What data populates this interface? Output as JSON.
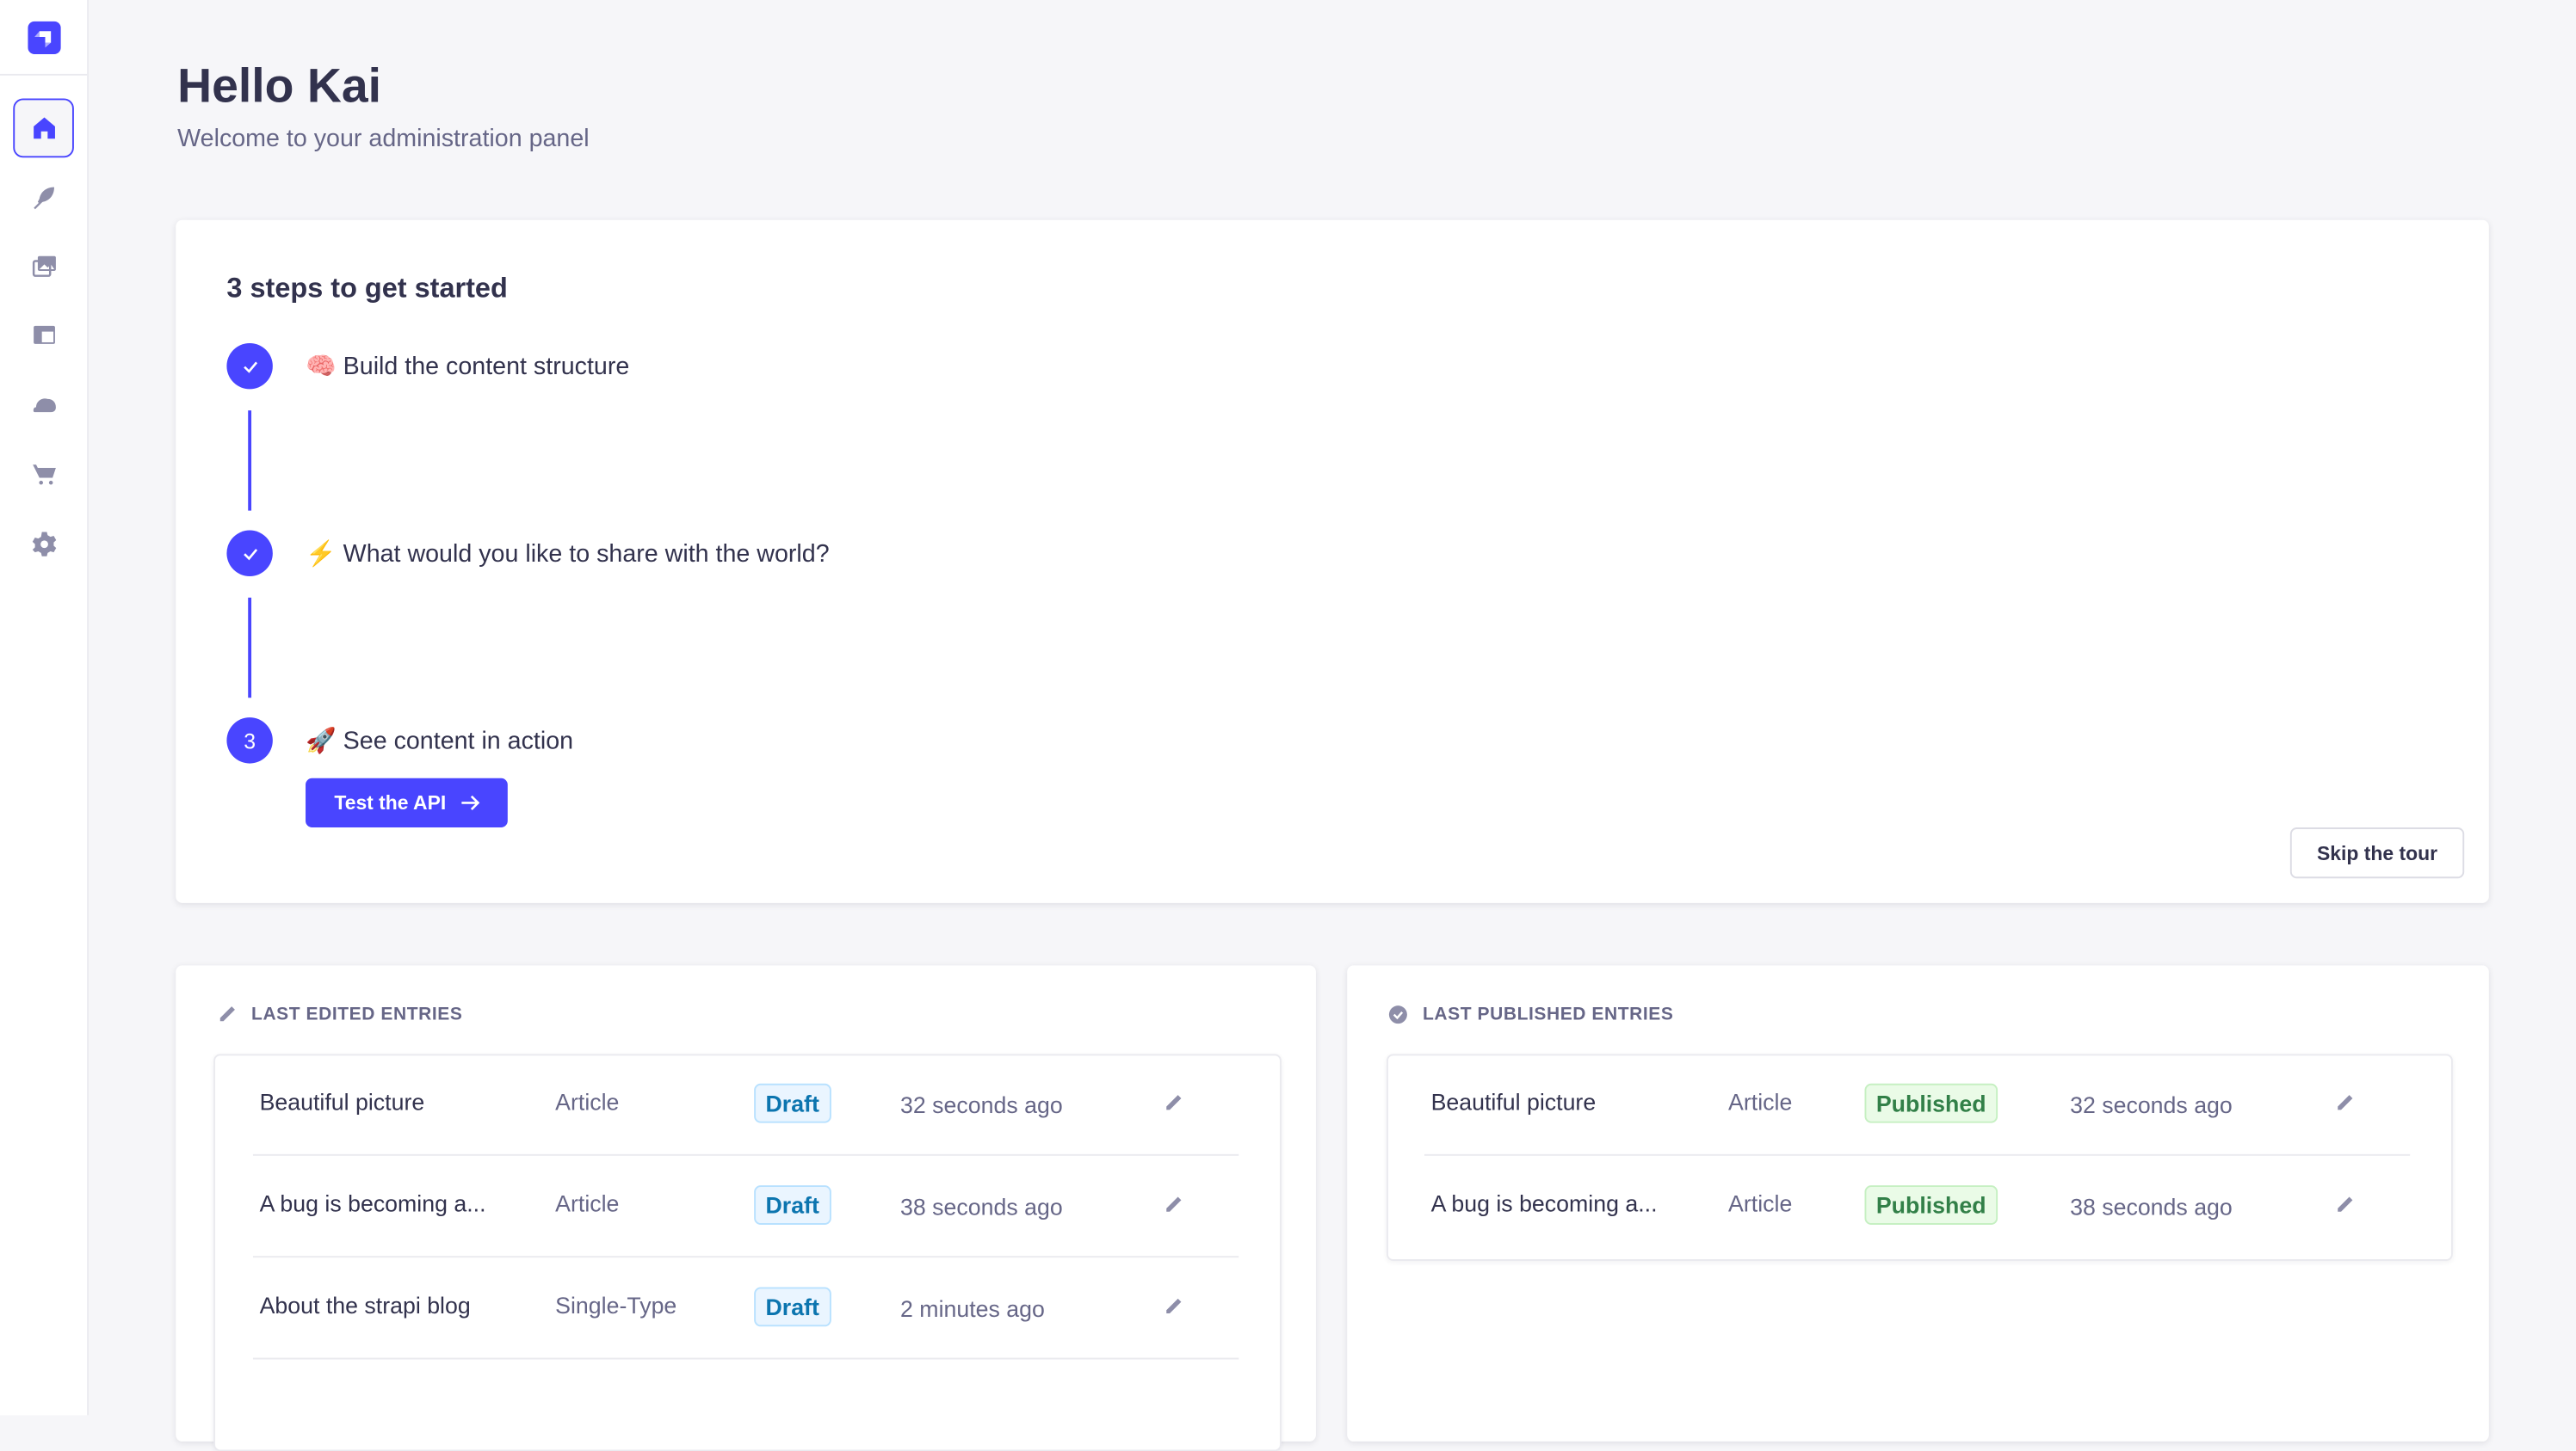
{
  "sidebar": {
    "items": [
      {
        "name": "home",
        "icon": "home-icon",
        "active": true
      },
      {
        "name": "content-manager",
        "icon": "feather-icon"
      },
      {
        "name": "media-library",
        "icon": "images-icon"
      },
      {
        "name": "content-type-builder",
        "icon": "layout-icon"
      },
      {
        "name": "marketplace",
        "icon": "cloud-icon"
      },
      {
        "name": "plugins",
        "icon": "cart-icon"
      },
      {
        "name": "settings",
        "icon": "gear-icon"
      }
    ]
  },
  "header": {
    "title": "Hello Kai",
    "subtitle": "Welcome to your administration panel"
  },
  "onboarding": {
    "title": "3 steps to get started",
    "steps": [
      {
        "emoji": "🧠",
        "label": "Build the content structure",
        "status": "done"
      },
      {
        "emoji": "⚡",
        "label": "What would you like to share with the world?",
        "status": "done"
      },
      {
        "emoji": "🚀",
        "label": "See content in action",
        "status": "current",
        "number": "3"
      }
    ],
    "cta_label": "Test the API",
    "skip_label": "Skip the tour"
  },
  "last_edited": {
    "title": "LAST EDITED ENTRIES",
    "rows": [
      {
        "name": "Beautiful picture",
        "type": "Article",
        "status": "Draft",
        "time": "32 seconds ago"
      },
      {
        "name": "A bug is becoming a...",
        "type": "Article",
        "status": "Draft",
        "time": "38 seconds ago"
      },
      {
        "name": "About the strapi blog",
        "type": "Single-Type",
        "status": "Draft",
        "time": "2 minutes ago"
      }
    ]
  },
  "last_published": {
    "title": "LAST PUBLISHED ENTRIES",
    "rows": [
      {
        "name": "Beautiful picture",
        "type": "Article",
        "status": "Published",
        "time": "32 seconds ago"
      },
      {
        "name": "A bug is becoming a...",
        "type": "Article",
        "status": "Published",
        "time": "38 seconds ago"
      }
    ]
  },
  "colors": {
    "accent": "#4945ff",
    "draft": "#0c75af",
    "published": "#328048",
    "background": "#f6f6f9"
  }
}
